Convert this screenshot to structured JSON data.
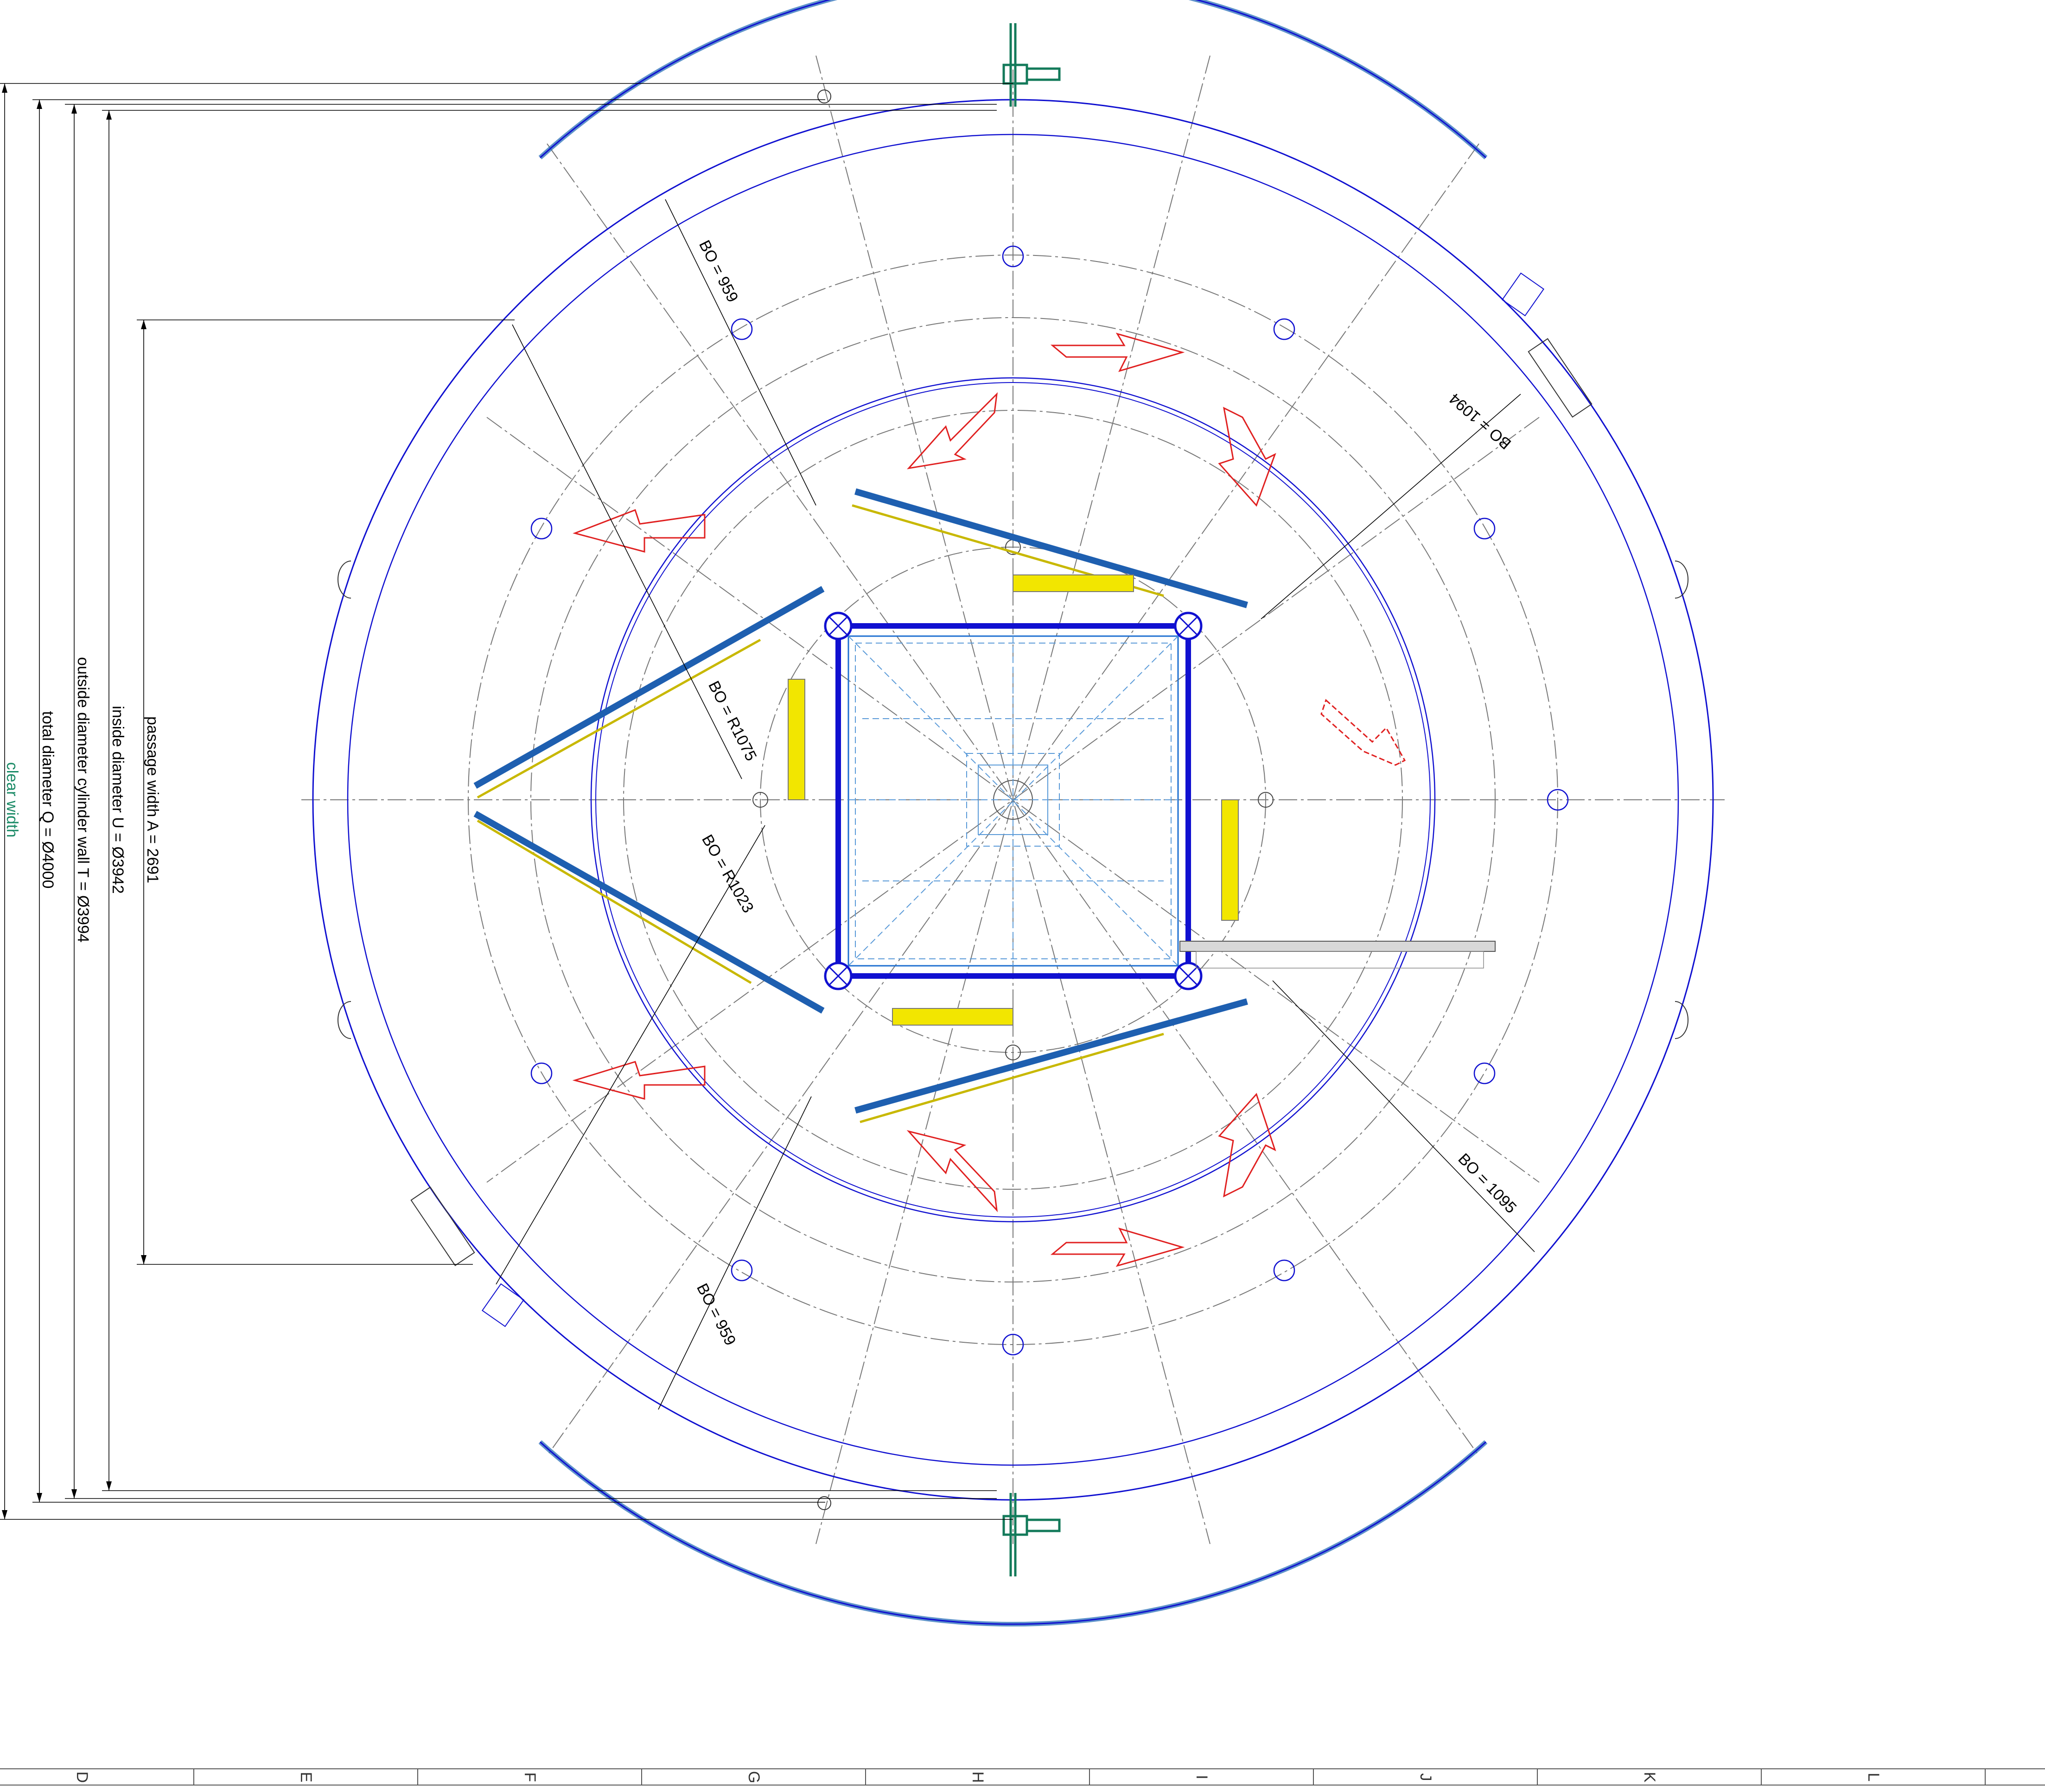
{
  "labels": {
    "clear_width": "clear width",
    "total_diameter": "total diameter Q = Ø4000",
    "outside_diameter": "outside diameter cylinder wall T = Ø3994",
    "inside_diameter": "inside diameter U = Ø3942",
    "passage_width": "passage width A = 2691"
  },
  "bo_labels": {
    "upper_left": "BO = 959",
    "upper_right": "BO = 1094",
    "inner_r1075": "BO = R1075",
    "inner_r1023": "BO = R1023",
    "lower_left": "BO = 959",
    "lower_right": "BO = 1095"
  },
  "grid_columns": [
    "D",
    "E",
    "F",
    "G",
    "H",
    "I",
    "J",
    "K",
    "L"
  ],
  "colors": {
    "structure": "#1010d0",
    "arrows": "#e02020",
    "panels": "#f2e600",
    "posts": "#137a5a",
    "centerlines": "#777777"
  }
}
